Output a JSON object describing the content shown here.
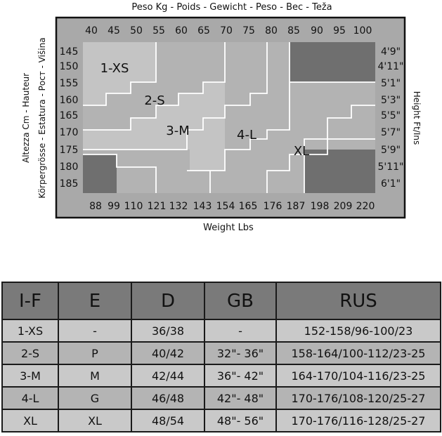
{
  "chart_data": {
    "type": "heatmap",
    "title": "Peso Kg - Poids - Gewicht - Peso - Bec - Teža",
    "xlabel": "Weight Lbs",
    "ylabel_left_line1": "Altezza Cm - Hauteur",
    "ylabel_left_line2": "Körpergrösse - Estatura - Рост - Višina",
    "ylabel_right": "Height Ft/Ins",
    "x_kg_ticks": [
      "40",
      "45",
      "50",
      "55",
      "60",
      "65",
      "70",
      "75",
      "80",
      "85",
      "90",
      "95",
      "100"
    ],
    "x_lbs_ticks": [
      "88",
      "99",
      "110",
      "121",
      "132",
      "143",
      "154",
      "165",
      "176",
      "187",
      "198",
      "209",
      "220"
    ],
    "y_cm_ticks": [
      "145",
      "150",
      "155",
      "160",
      "165",
      "170",
      "175",
      "180",
      "185"
    ],
    "y_ftin_ticks": [
      "4'9\"",
      "4'11\"",
      "5'1\"",
      "5'3\"",
      "5'5\"",
      "5'7\"",
      "5'9\"",
      "5'11\"",
      "6'1\""
    ],
    "zones": [
      "1-XS",
      "2-S",
      "3-M",
      "4-L",
      "XL"
    ],
    "colors": {
      "frame_bg": "#a9a9a9",
      "light_zone": "#c4c4c4",
      "mid_zone": "#b3b3b3",
      "dark_zone": "#6f6f6f",
      "line": "#ffffff",
      "border": "#111111"
    }
  },
  "size_table": {
    "headers": [
      "I-F",
      "E",
      "D",
      "GB",
      "RUS"
    ],
    "rows": [
      [
        "1-XS",
        "-",
        "36/38",
        "-",
        "152-158/96-100/23"
      ],
      [
        "2-S",
        "P",
        "40/42",
        "32\"- 36\"",
        "158-164/100-112/23-25"
      ],
      [
        "3-M",
        "M",
        "42/44",
        "36\"- 42\"",
        "164-170/104-116/23-25"
      ],
      [
        "4-L",
        "G",
        "46/48",
        "42\"- 48\"",
        "170-176/108-120/25-27"
      ],
      [
        "XL",
        "XL",
        "48/54",
        "48\"- 56\"",
        "170-176/116-128/25-27"
      ]
    ]
  }
}
